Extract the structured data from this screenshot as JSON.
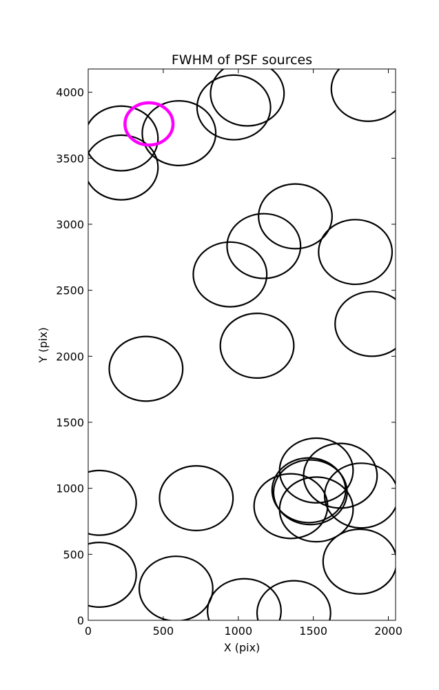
{
  "chart_data": {
    "type": "scatter",
    "title": "FWHM of PSF sources",
    "xlabel": "X (pix)",
    "ylabel": "Y (pix)",
    "xlim": [
      0,
      2048
    ],
    "ylim": [
      0,
      4176
    ],
    "grid": false,
    "x_ticks": [
      0,
      500,
      1000,
      1500,
      2000
    ],
    "y_ticks": [
      0,
      500,
      1000,
      1500,
      2000,
      2500,
      3000,
      3500,
      4000
    ],
    "marker_radius": 245,
    "sources": [
      {
        "x": 220,
        "y": 3650
      },
      {
        "x": 220,
        "y": 3430
      },
      {
        "x": 605,
        "y": 3690
      },
      {
        "x": 970,
        "y": 3885
      },
      {
        "x": 1060,
        "y": 3990
      },
      {
        "x": 1865,
        "y": 4025
      },
      {
        "x": 1380,
        "y": 3060
      },
      {
        "x": 1170,
        "y": 2835
      },
      {
        "x": 945,
        "y": 2620
      },
      {
        "x": 1780,
        "y": 2790
      },
      {
        "x": 1890,
        "y": 2245
      },
      {
        "x": 1125,
        "y": 2080
      },
      {
        "x": 385,
        "y": 1905
      },
      {
        "x": 75,
        "y": 890
      },
      {
        "x": 720,
        "y": 925
      },
      {
        "x": 1520,
        "y": 1135
      },
      {
        "x": 1680,
        "y": 1095
      },
      {
        "x": 1820,
        "y": 945
      },
      {
        "x": 1480,
        "y": 970
      },
      {
        "x": 1470,
        "y": 985
      },
      {
        "x": 1350,
        "y": 865
      },
      {
        "x": 1520,
        "y": 840
      },
      {
        "x": 75,
        "y": 345
      },
      {
        "x": 585,
        "y": 240
      },
      {
        "x": 1040,
        "y": 70
      },
      {
        "x": 1370,
        "y": 55
      },
      {
        "x": 1810,
        "y": 445
      }
    ],
    "highlight": {
      "x": 405,
      "y": 3760,
      "radius": 160,
      "color": "#ff00ff"
    },
    "marker_color": "#000000"
  }
}
